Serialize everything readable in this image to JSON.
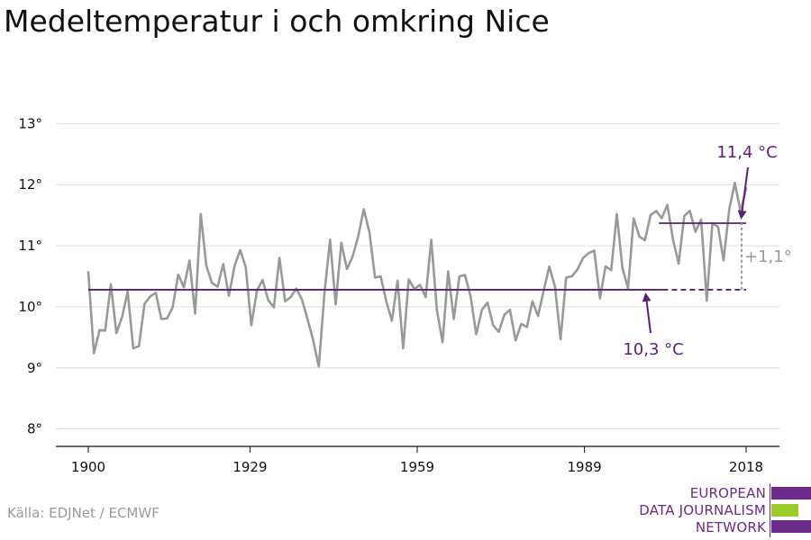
{
  "title": "Medeltemperatur i och omkring Nice",
  "source": "Källa: EDJNet / ECMWF",
  "logo": {
    "lines": [
      "EUROPEAN",
      "DATA JOURNALISM",
      "NETWORK"
    ],
    "colors": [
      "#6b2a8a",
      "#9ccc2a",
      "#6b2a8a"
    ]
  },
  "colors": {
    "series": "#999999",
    "accent": "#5c1f7a",
    "annotation_grey": "#999999",
    "grid": "#dddddd"
  },
  "chart_data": {
    "type": "line",
    "title": "Medeltemperatur i och omkring Nice",
    "xlabel": "",
    "ylabel": "",
    "xlim": [
      1900,
      2018
    ],
    "ylim": [
      7.7,
      13.3
    ],
    "x_ticks": [
      1900,
      1929,
      1959,
      1989,
      2018
    ],
    "x_tick_labels": [
      "1900",
      "1929",
      "1959",
      "1989",
      "2018"
    ],
    "y_ticks": [
      8,
      9,
      10,
      11,
      12,
      13
    ],
    "y_tick_labels": [
      "8°",
      "9°",
      "10°",
      "11°",
      "12°",
      "13°"
    ],
    "grid": true,
    "series": [
      {
        "x_start": 1900,
        "x_end": 2018,
        "values": [
          10.57,
          9.24,
          9.62,
          9.61,
          10.37,
          9.57,
          9.83,
          10.25,
          9.32,
          9.36,
          10.05,
          10.17,
          10.23,
          9.8,
          9.81,
          9.99,
          10.53,
          10.32,
          10.76,
          9.89,
          11.52,
          10.67,
          10.39,
          10.33,
          10.7,
          10.18,
          10.66,
          10.93,
          10.65,
          9.7,
          10.27,
          10.44,
          10.11,
          9.99,
          10.8,
          10.09,
          10.16,
          10.3,
          10.12,
          9.8,
          9.45,
          9.02,
          10.23,
          11.1,
          10.04,
          11.05,
          10.62,
          10.82,
          11.15,
          11.6,
          11.22,
          10.48,
          10.5,
          10.09,
          9.77,
          10.43,
          9.32,
          10.45,
          10.29,
          10.36,
          10.16,
          11.1,
          9.95,
          9.42,
          10.58,
          9.8,
          10.5,
          10.52,
          10.17,
          9.55,
          9.95,
          10.07,
          9.7,
          9.59,
          9.87,
          9.95,
          9.45,
          9.72,
          9.67,
          10.09,
          9.85,
          10.27,
          10.66,
          10.33,
          9.47,
          10.48,
          10.5,
          10.61,
          10.8,
          10.88,
          10.92,
          10.14,
          10.66,
          10.6,
          11.52,
          10.64,
          10.3,
          11.45,
          11.15,
          11.09,
          11.5,
          11.57,
          11.45,
          11.67,
          11.1,
          10.71,
          11.49,
          11.57,
          11.23,
          11.43,
          10.1,
          11.37,
          11.31,
          10.76,
          11.6,
          12.03,
          11.56,
          11.94
        ]
      }
    ],
    "reference_lines": [
      {
        "label": "10,3 °C",
        "value": 10.28,
        "x_start": 1900,
        "x_end": 2018,
        "solid_until": 2004
      },
      {
        "label": "11,4 °C",
        "value": 11.37,
        "x_start": 2003,
        "x_end": 2018
      }
    ],
    "difference_annotation": {
      "label": "+1,1°",
      "x": 2018,
      "from": 10.28,
      "to": 11.37
    }
  }
}
